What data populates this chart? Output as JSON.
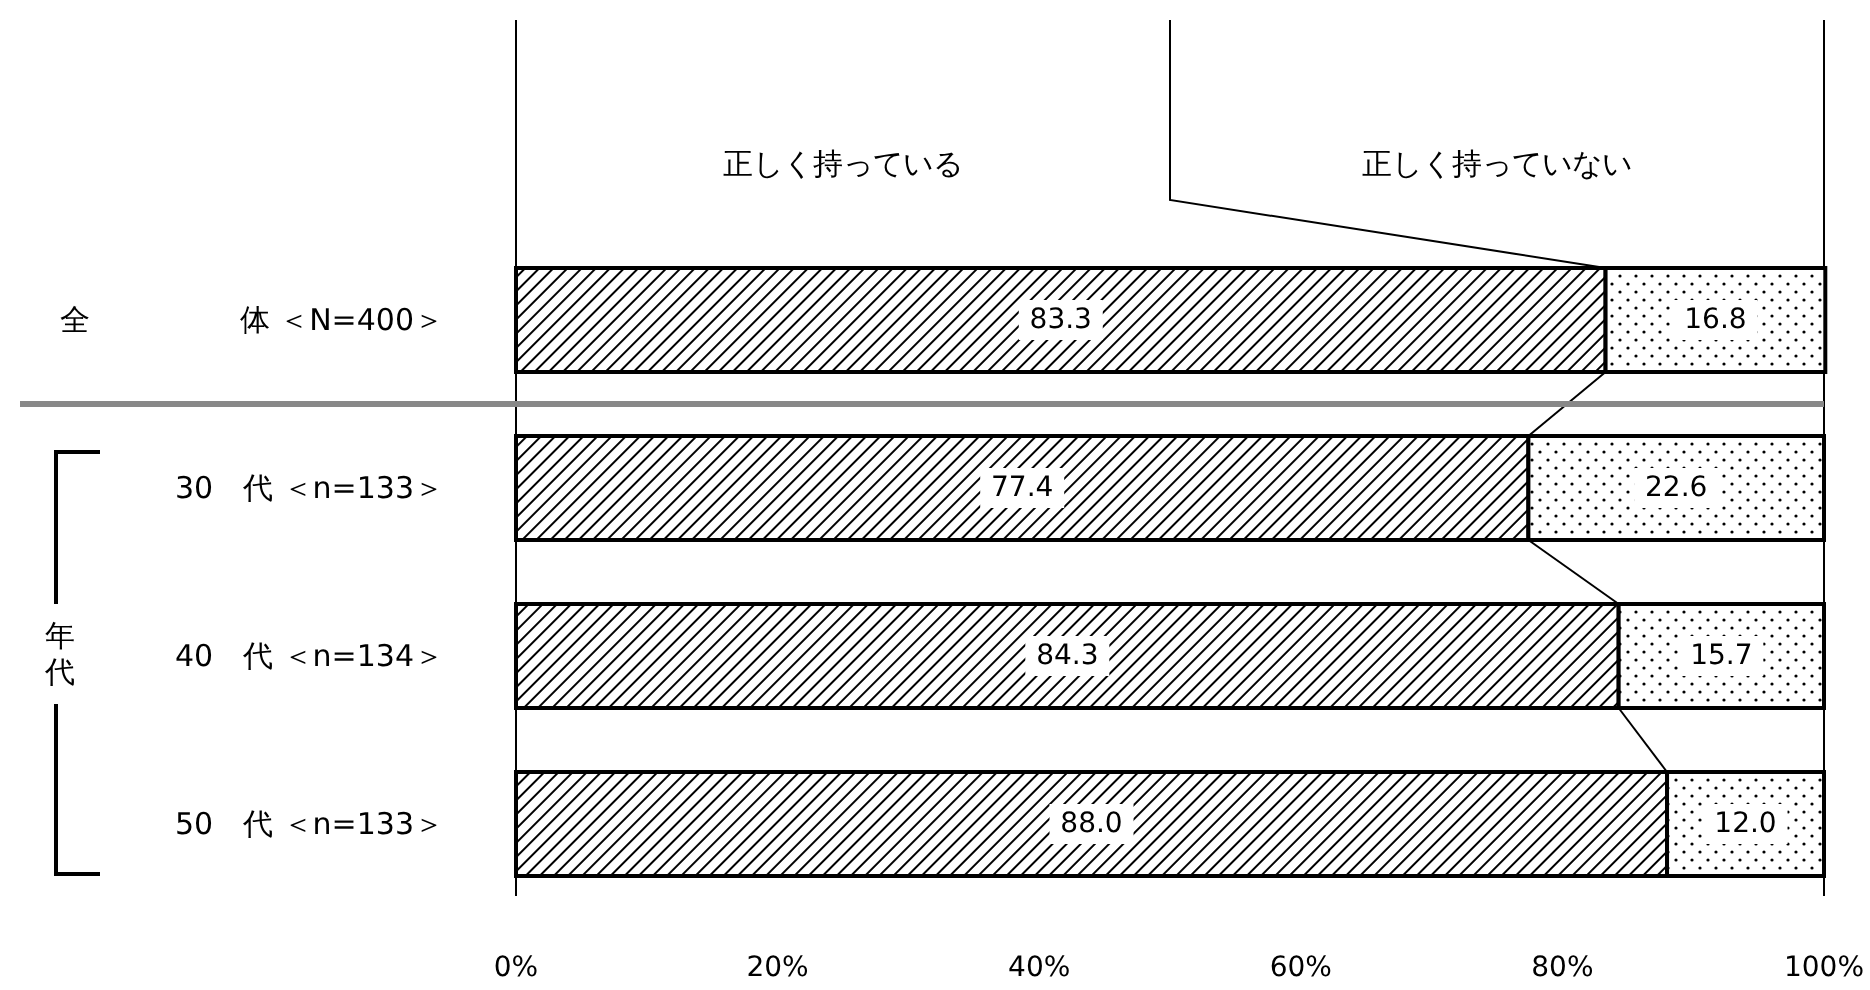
{
  "chart_data": {
    "type": "bar",
    "orientation": "horizontal",
    "stacked": true,
    "categories": [
      "全　　　　　体 ＜N=400＞",
      "30　代 ＜n=133＞",
      "40　代 ＜n=134＞",
      "50　代 ＜n=133＞"
    ],
    "series": [
      {
        "name": "正しく持っている",
        "color": "#000000",
        "values": [
          83.3,
          77.4,
          84.3,
          88.0
        ],
        "value_labels": [
          "83.3",
          "77.4",
          "84.3",
          "88.0"
        ]
      },
      {
        "name": "正しく持っていない",
        "color": "#000000",
        "values": [
          16.8,
          22.6,
          15.7,
          12.0
        ],
        "value_labels": [
          "16.8",
          "22.6",
          "15.7",
          "12.0"
        ]
      }
    ],
    "xlim": [
      0,
      100
    ],
    "xticks": [
      {
        "value": 0,
        "label": "0%"
      },
      {
        "value": 20,
        "label": "20%"
      },
      {
        "value": 40,
        "label": "40%"
      },
      {
        "value": 60,
        "label": "60%"
      },
      {
        "value": 80,
        "label": "80%"
      },
      {
        "value": 100,
        "label": "100%"
      }
    ],
    "legend": "top",
    "annotations": [
      "年代"
    ]
  }
}
